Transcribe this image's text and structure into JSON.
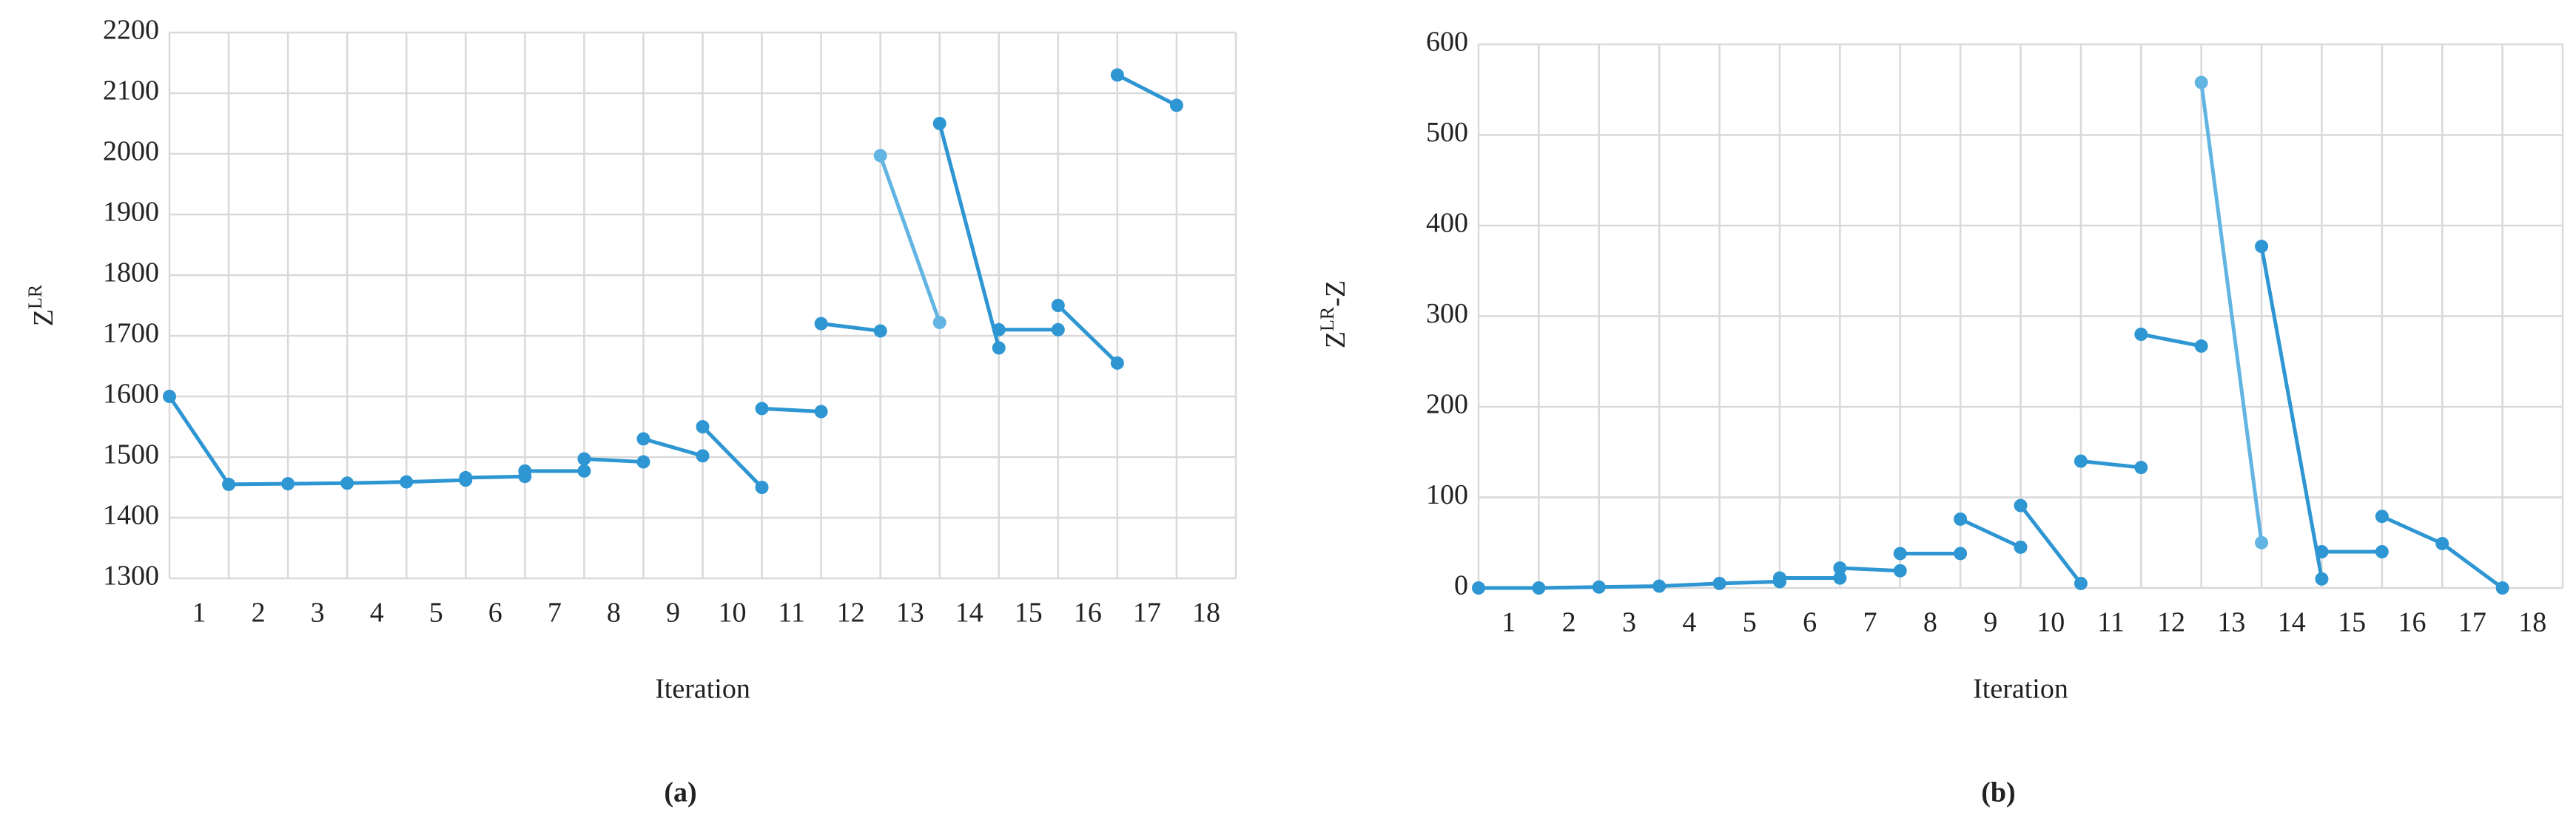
{
  "chart_data": [
    {
      "type": "line",
      "panel_label": "(a)",
      "xlabel": "Iteration",
      "ylabel": [
        "Z",
        "LR"
      ],
      "categories": [
        "1",
        "2",
        "3",
        "4",
        "5",
        "6",
        "7",
        "8",
        "9",
        "10",
        "11",
        "12",
        "13",
        "14",
        "15",
        "16",
        "17",
        "18"
      ],
      "xlim": [
        0,
        18
      ],
      "ylim": [
        1300,
        2200
      ],
      "yticks": [
        1300,
        1400,
        1500,
        1600,
        1700,
        1800,
        1900,
        2000,
        2100,
        2200
      ],
      "grid": true,
      "series": [
        {
          "color": "#2e96d2",
          "x": [
            0,
            1,
            2,
            3,
            4,
            5,
            null,
            5,
            6,
            null,
            6,
            7,
            null,
            7,
            8,
            null,
            8,
            9,
            null,
            9,
            10,
            null,
            10,
            11,
            null,
            11,
            12,
            null,
            13,
            14,
            null,
            14,
            15,
            null,
            15,
            16,
            null,
            16,
            17
          ],
          "values": [
            1600,
            1455,
            1456,
            1457,
            1459,
            1462,
            null,
            1466,
            1468,
            null,
            1477,
            1477,
            null,
            1497,
            1492,
            null,
            1530,
            1502,
            null,
            1550,
            1450,
            null,
            1580,
            1575,
            null,
            1720,
            1708,
            null,
            2050,
            1680,
            null,
            1710,
            1710,
            null,
            1750,
            1655,
            null,
            2130,
            2080
          ]
        },
        {
          "color": "#62b4e2",
          "x": [
            12,
            13
          ],
          "values": [
            1997,
            1722
          ]
        }
      ]
    },
    {
      "type": "line",
      "panel_label": "(b)",
      "xlabel": "Iteration",
      "ylabel": [
        "Z",
        "LR",
        "-Z"
      ],
      "categories": [
        "1",
        "2",
        "3",
        "4",
        "5",
        "6",
        "7",
        "8",
        "9",
        "10",
        "11",
        "12",
        "13",
        "14",
        "15",
        "16",
        "17",
        "18"
      ],
      "xlim": [
        0,
        18
      ],
      "ylim": [
        0,
        600
      ],
      "yticks": [
        0,
        100,
        200,
        300,
        400,
        500,
        600
      ],
      "grid": true,
      "series": [
        {
          "color": "#2e96d2",
          "x": [
            0,
            1,
            2,
            3,
            4,
            5,
            null,
            5,
            6,
            null,
            6,
            7,
            null,
            7,
            8,
            null,
            8,
            9,
            null,
            9,
            10,
            null,
            10,
            11,
            null,
            11,
            12,
            null,
            13,
            14,
            null,
            14,
            15,
            null,
            15,
            16,
            17
          ],
          "values": [
            0,
            0,
            1,
            2,
            5,
            7,
            null,
            11,
            11,
            null,
            22,
            19,
            null,
            38,
            38,
            null,
            76,
            45,
            null,
            91,
            5,
            null,
            140,
            133,
            null,
            280,
            267,
            null,
            377,
            10,
            null,
            40,
            40,
            null,
            79,
            49,
            0
          ]
        },
        {
          "color": "#62b4e2",
          "x": [
            12,
            13
          ],
          "values": [
            558,
            50
          ]
        }
      ]
    }
  ]
}
